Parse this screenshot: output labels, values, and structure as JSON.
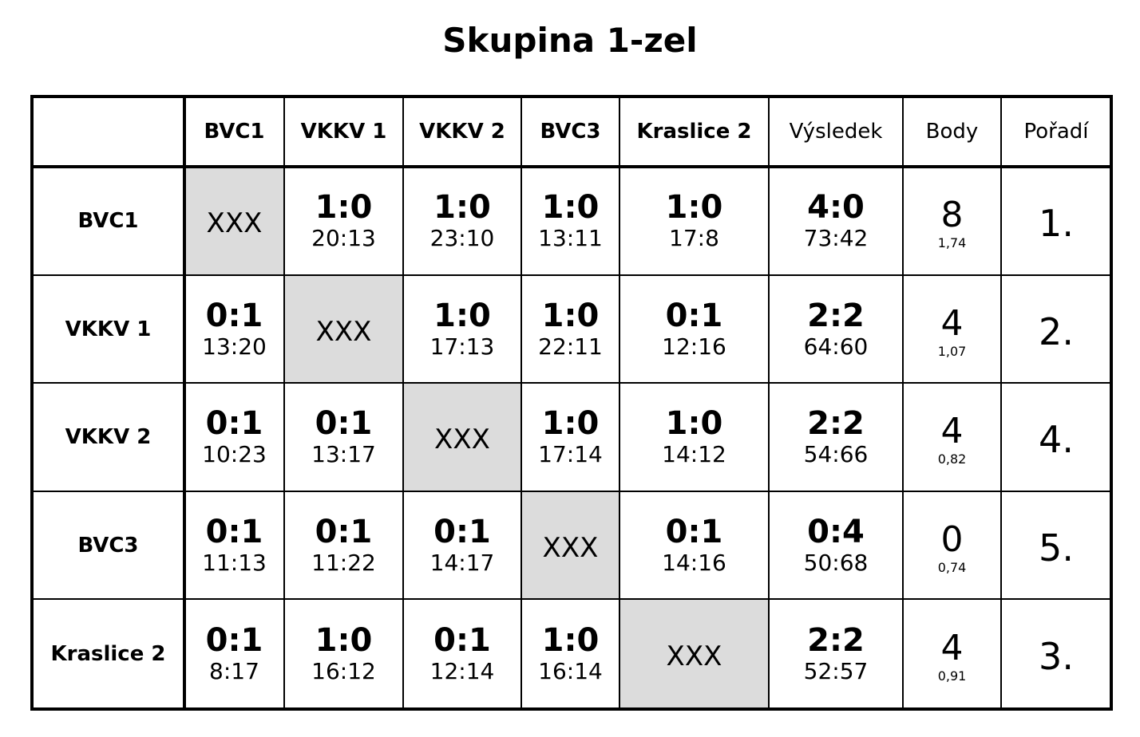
{
  "title": "Skupina 1-zel",
  "table": {
    "header": [
      "BVC1",
      "VKKV 1",
      "VKKV 2",
      "BVC3",
      "Kraslice 2",
      "Výsledek",
      "Body",
      "Pořadí"
    ],
    "rows": [
      {
        "team": "BVC1",
        "matches": [
          "XXX",
          {
            "score": "1:0",
            "points": "20:13"
          },
          {
            "score": "1:0",
            "points": "23:10"
          },
          {
            "score": "1:0",
            "points": "13:11"
          },
          {
            "score": "1:0",
            "points": "17:8"
          }
        ],
        "result": {
          "score": "4:0",
          "points": "73:42"
        },
        "body": {
          "points": "8",
          "ratio": "1,74"
        },
        "rank": "1."
      },
      {
        "team": "VKKV 1",
        "matches": [
          {
            "score": "0:1",
            "points": "13:20"
          },
          "XXX",
          {
            "score": "1:0",
            "points": "17:13"
          },
          {
            "score": "1:0",
            "points": "22:11"
          },
          {
            "score": "0:1",
            "points": "12:16"
          }
        ],
        "result": {
          "score": "2:2",
          "points": "64:60"
        },
        "body": {
          "points": "4",
          "ratio": "1,07"
        },
        "rank": "2."
      },
      {
        "team": "VKKV 2",
        "matches": [
          {
            "score": "0:1",
            "points": "10:23"
          },
          {
            "score": "0:1",
            "points": "13:17"
          },
          "XXX",
          {
            "score": "1:0",
            "points": "17:14"
          },
          {
            "score": "1:0",
            "points": "14:12"
          }
        ],
        "result": {
          "score": "2:2",
          "points": "54:66"
        },
        "body": {
          "points": "4",
          "ratio": "0,82"
        },
        "rank": "4."
      },
      {
        "team": "BVC3",
        "matches": [
          {
            "score": "0:1",
            "points": "11:13"
          },
          {
            "score": "0:1",
            "points": "11:22"
          },
          {
            "score": "0:1",
            "points": "14:17"
          },
          "XXX",
          {
            "score": "0:1",
            "points": "14:16"
          }
        ],
        "result": {
          "score": "0:4",
          "points": "50:68"
        },
        "body": {
          "points": "0",
          "ratio": "0,74"
        },
        "rank": "5."
      },
      {
        "team": "Kraslice 2",
        "matches": [
          {
            "score": "0:1",
            "points": "8:17"
          },
          {
            "score": "1:0",
            "points": "16:12"
          },
          {
            "score": "0:1",
            "points": "12:14"
          },
          {
            "score": "1:0",
            "points": "16:14"
          },
          "XXX"
        ],
        "result": {
          "score": "2:2",
          "points": "52:57"
        },
        "body": {
          "points": "4",
          "ratio": "0,91"
        },
        "rank": "3."
      }
    ]
  }
}
